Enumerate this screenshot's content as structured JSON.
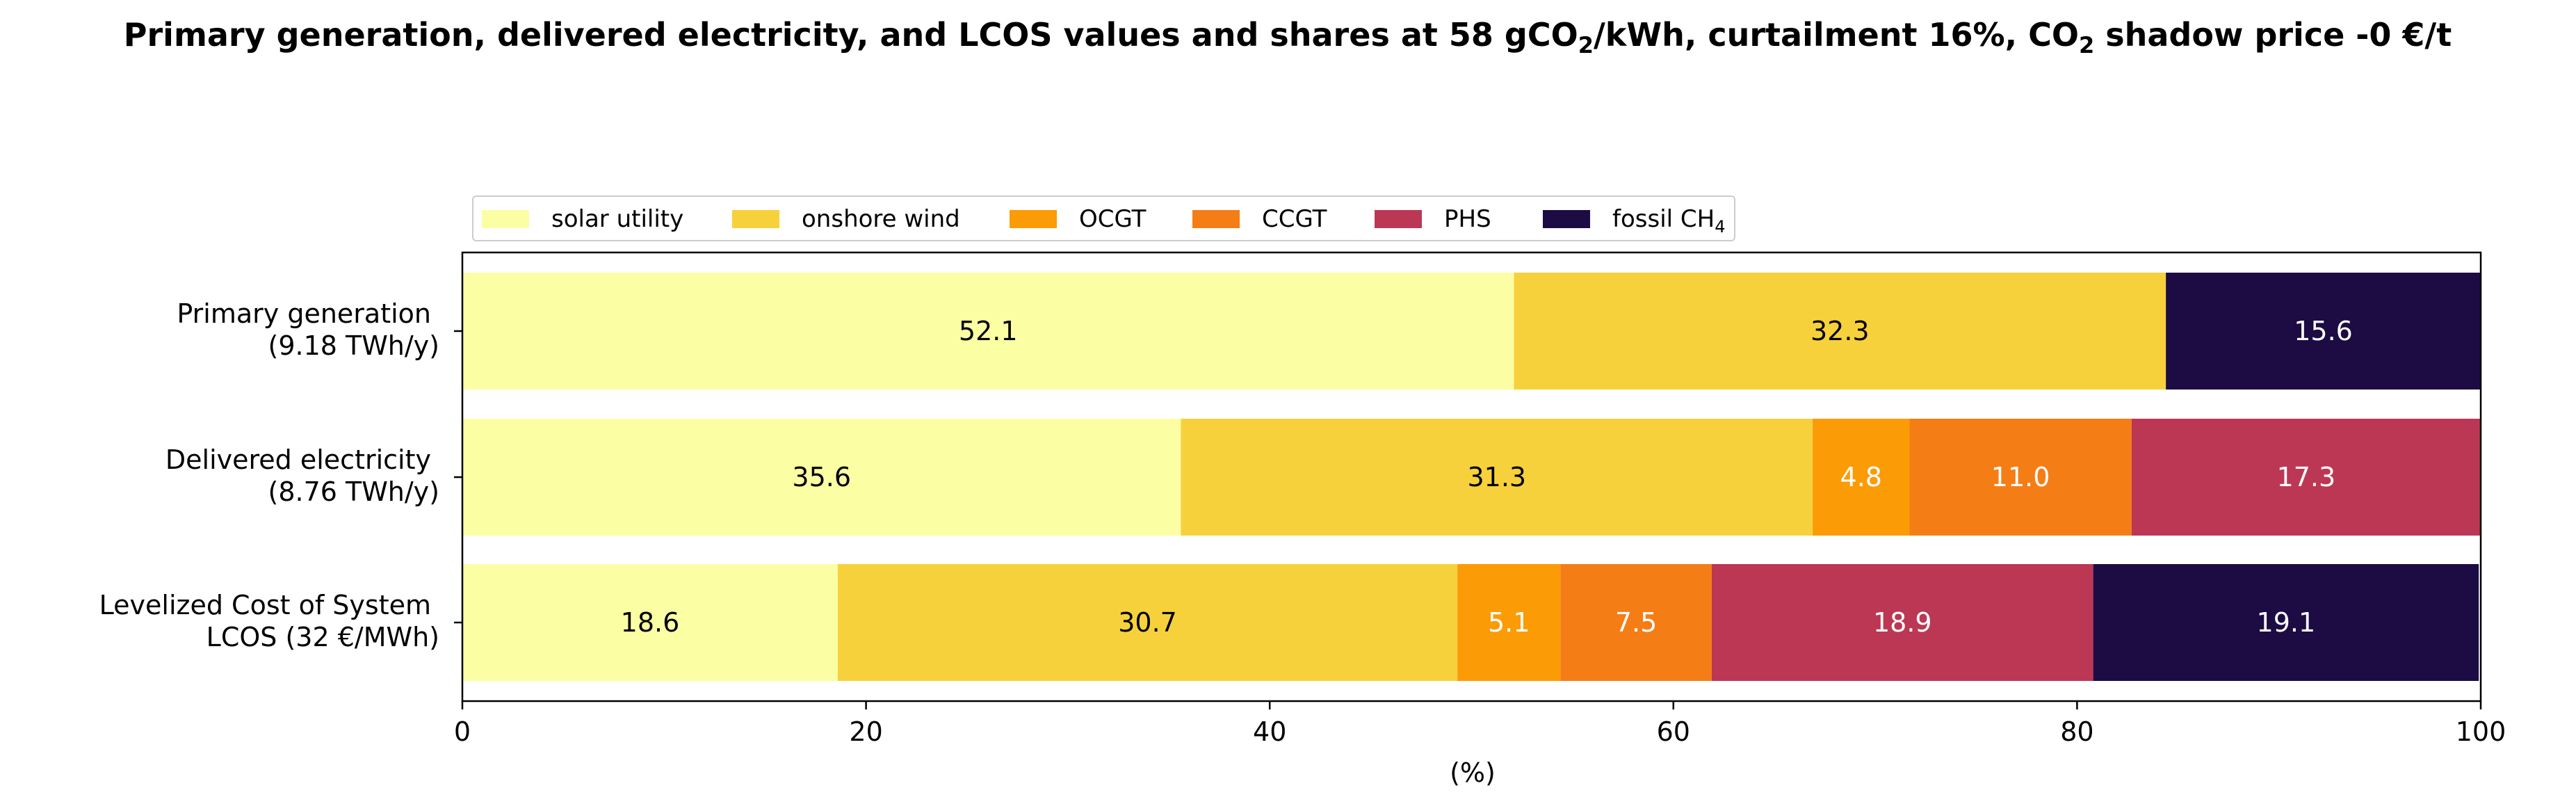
{
  "chart_data": {
    "type": "bar",
    "orientation": "horizontal",
    "stacked": true,
    "title": {
      "main": "Primary generation, delivered electricity, and LCOS values and shares at 58 gCO",
      "sub1": "2",
      "mid": "/kWh, curtailment 16%, CO",
      "sub2": "2",
      "end": " shadow price -0 €/t"
    },
    "xlabel": "(%)",
    "ylabel": "",
    "xlim": [
      0,
      100
    ],
    "xticks": [
      "0",
      "20",
      "40",
      "60",
      "80",
      "100"
    ],
    "grid": false,
    "legend_position": "top-left",
    "categories": [
      {
        "line1": "Primary generation",
        "line2": "(9.18 TWh/y)"
      },
      {
        "line1": "Delivered electricity",
        "line2": "(8.76 TWh/y)"
      },
      {
        "line1": "Levelized Cost of System",
        "line2": "LCOS  (32 €/MWh)"
      }
    ],
    "series": [
      {
        "name": "solar utility",
        "color": "#fcfea4",
        "label_color": "#000000",
        "values": [
          52.1,
          35.6,
          18.6
        ]
      },
      {
        "name": "onshore wind",
        "color": "#f7d13c",
        "label_color": "#000000",
        "values": [
          32.3,
          31.3,
          30.7
        ]
      },
      {
        "name": "OCGT",
        "color": "#fb9b06",
        "label_color": "#ffffff",
        "values": [
          0,
          4.8,
          5.1
        ]
      },
      {
        "name": "CCGT",
        "color": "#f57d15",
        "label_color": "#ffffff",
        "values": [
          0,
          11.0,
          7.5
        ]
      },
      {
        "name": "PHS",
        "color": "#bc3754",
        "label_color": "#ffffff",
        "values": [
          0,
          17.3,
          18.9
        ]
      },
      {
        "name": "fossil CH",
        "name_sub": "4",
        "color": "#1c0c43",
        "label_color": "#ffffff",
        "values": [
          15.6,
          0,
          19.1
        ]
      }
    ]
  }
}
